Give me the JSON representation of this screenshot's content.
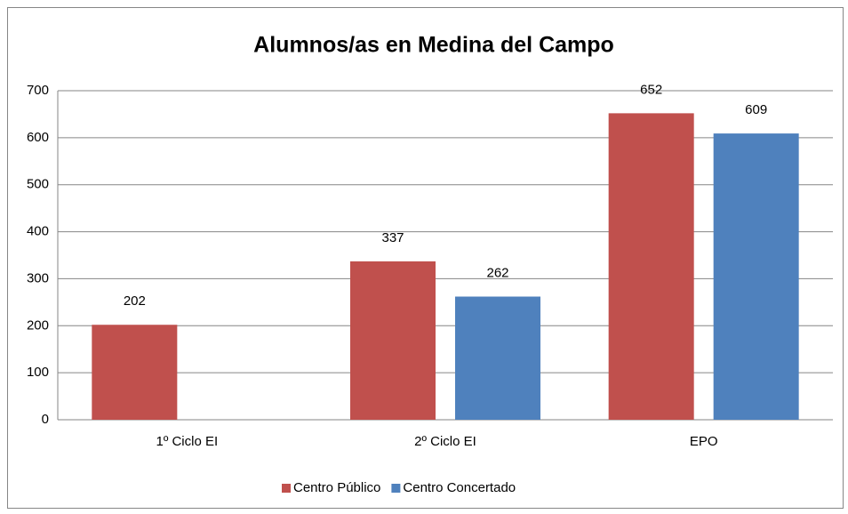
{
  "chart_data": {
    "type": "bar",
    "title": "Alumnos/as en Medina del Campo",
    "categories": [
      "1º Ciclo EI",
      "2º Ciclo EI",
      "EPO"
    ],
    "series": [
      {
        "name": "Centro Público",
        "color": "#c0504d",
        "values": [
          202,
          337,
          652
        ]
      },
      {
        "name": "Centro Concertado",
        "color": "#4f81bd",
        "values": [
          null,
          262,
          609
        ]
      }
    ],
    "ylim": [
      0,
      700
    ],
    "yticks": [
      0,
      100,
      200,
      300,
      400,
      500,
      600,
      700
    ],
    "grid": true,
    "legend": "bottom"
  }
}
